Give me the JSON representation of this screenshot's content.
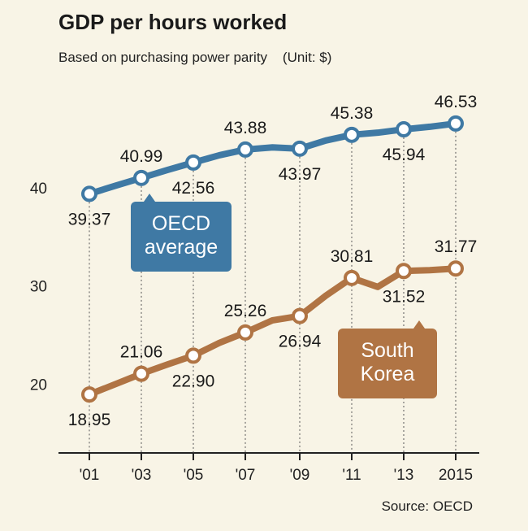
{
  "title": "GDP per hours worked",
  "subtitle": "Based on purchasing power parity    (Unit: $)",
  "source": "Source: OECD",
  "colors": {
    "background": "#f8f4e6",
    "oecd": "#3f79a4",
    "korea": "#b07444",
    "axis": "#222222"
  },
  "chart_data": {
    "type": "line",
    "title": "GDP per hours worked",
    "subtitle": "Based on purchasing power parity    (Unit: $)",
    "x": [
      "'01",
      "'03",
      "'05",
      "'07",
      "'09",
      "'11",
      "'13",
      "2015"
    ],
    "ylim": [
      13,
      50
    ],
    "yticks": [
      20,
      30,
      40
    ],
    "grid": false,
    "series": [
      {
        "name": "OECD average",
        "legend_lines": [
          "OECD",
          "average"
        ],
        "color": "#3f79a4",
        "values": [
          39.37,
          40.99,
          42.56,
          43.88,
          43.97,
          45.38,
          45.94,
          46.53
        ],
        "labels": [
          "39.37",
          "40.99",
          "42.56",
          "43.88",
          "43.97",
          "45.38",
          "45.94",
          "46.53"
        ],
        "intermediate_years_values": [
          40.2,
          41.8,
          43.3,
          44.1,
          44.8,
          45.6,
          46.2
        ]
      },
      {
        "name": "South Korea",
        "legend_lines": [
          "South",
          "Korea"
        ],
        "color": "#b07444",
        "values": [
          18.95,
          21.06,
          22.9,
          25.26,
          26.94,
          30.81,
          31.52,
          31.77
        ],
        "labels": [
          "18.95",
          "21.06",
          "22.90",
          "25.26",
          "26.94",
          "30.81",
          "31.52",
          "31.77"
        ],
        "intermediate_years_values": [
          20.0,
          22.0,
          24.2,
          26.5,
          29.0,
          29.9,
          31.6
        ]
      }
    ]
  }
}
